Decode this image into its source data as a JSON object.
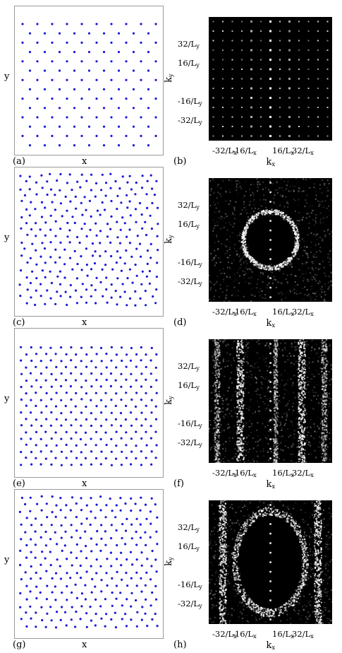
{
  "rows": [
    {
      "left": {
        "letter": "(a)",
        "xlabel": "x",
        "ylabel": "y",
        "kind": "lattice"
      },
      "right": {
        "letter": "(b)",
        "kind": "lattice"
      }
    },
    {
      "left": {
        "letter": "(c)",
        "xlabel": "x",
        "ylabel": "y",
        "kind": "liquid"
      },
      "right": {
        "letter": "(d)",
        "kind": "ring"
      }
    },
    {
      "left": {
        "letter": "(e)",
        "xlabel": "x",
        "ylabel": "y",
        "kind": "stripe"
      },
      "right": {
        "letter": "(f)",
        "kind": "stripes"
      }
    },
    {
      "left": {
        "letter": "(g)",
        "xlabel": "x",
        "ylabel": "y",
        "kind": "mixed"
      },
      "right": {
        "letter": "(h)",
        "kind": "ringstripes"
      }
    }
  ],
  "axes": {
    "kx_label": "k",
    "kx_sub": "x",
    "ky_label": "k",
    "ky_sub": "y",
    "ky_ticks": [
      {
        "num": "32/L",
        "sub": "y"
      },
      {
        "num": "16/L",
        "sub": "y"
      },
      {
        "num": "-16/L",
        "sub": "y"
      },
      {
        "num": "-32/L",
        "sub": "y"
      }
    ],
    "kx_ticks": [
      {
        "num": "-32/L",
        "sub": "x"
      },
      {
        "num": "-16/L",
        "sub": "x"
      },
      {
        "num": "16/L",
        "sub": "x"
      },
      {
        "num": "32/L",
        "sub": "x"
      }
    ]
  },
  "colors": {
    "dots": "#1a1ad6",
    "frame": "#9a9a9a",
    "spectrum_bg": "#000000"
  }
}
